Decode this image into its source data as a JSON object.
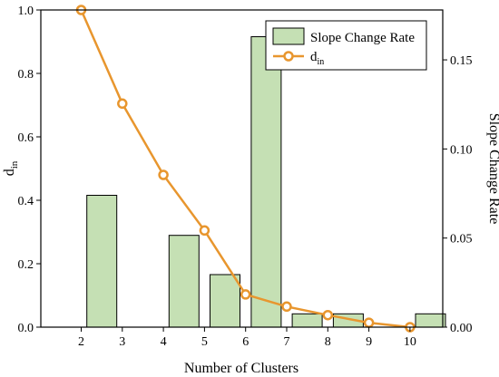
{
  "chart_data": {
    "type": "bar+line",
    "xlabel": "Number of Clusters",
    "ylabel_left_main": "d",
    "ylabel_left_sub": "in",
    "ylabel_right": "Slope Change Rate",
    "x_ticks": [
      "2",
      "3",
      "4",
      "5",
      "6",
      "7",
      "8",
      "9",
      "10"
    ],
    "y_left": {
      "range": [
        0,
        1.0
      ],
      "ticks": [
        0.0,
        0.2,
        0.4,
        0.6,
        0.8,
        1.0
      ],
      "tick_labels": [
        "0.0",
        "0.2",
        "0.4",
        "0.6",
        "0.8",
        "1.0"
      ]
    },
    "y_right": {
      "range": [
        0,
        0.178
      ],
      "ticks": [
        0.0,
        0.05,
        0.1,
        0.15
      ],
      "tick_labels": [
        "0.00",
        "0.05",
        "0.10",
        "0.15"
      ]
    },
    "bars": {
      "name": "Slope Change Rate",
      "axis": "right",
      "color": "#c5e0b4",
      "x": [
        2.5,
        4.5,
        5.5,
        6.5,
        7.5,
        8.5,
        9.5,
        10.5
      ],
      "values": [
        0.074,
        0.0515,
        0.0295,
        0.163,
        0.0075,
        0.0075,
        0.0,
        0.0075
      ]
    },
    "line": {
      "name": "din",
      "name_main": "d",
      "name_sub": "in",
      "axis": "left",
      "color": "#e8962e",
      "x": [
        2,
        3,
        4,
        5,
        6,
        7,
        8,
        9,
        10
      ],
      "values": [
        1.0,
        0.705,
        0.48,
        0.305,
        0.103,
        0.065,
        0.038,
        0.014,
        0.0
      ]
    },
    "legend_position": "top-right",
    "grid": false
  }
}
